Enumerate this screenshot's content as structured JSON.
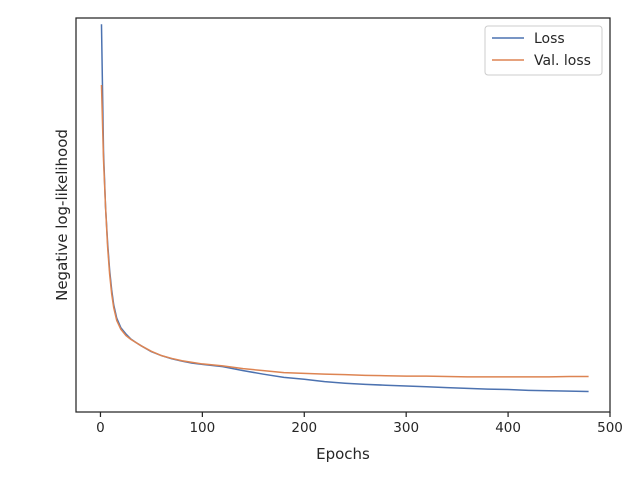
{
  "chart_data": {
    "type": "line",
    "title": "",
    "xlabel": "Epochs",
    "ylabel": "Negative log-likelihood",
    "xlim": [
      -24,
      500
    ],
    "ylim": [
      0.0,
      1.0
    ],
    "y_tick_labels_shown": false,
    "grid": false,
    "legend_position": "top-right",
    "x_ticks": [
      0,
      100,
      200,
      300,
      400,
      500
    ],
    "x_tick_labels": [
      "0",
      "100",
      "200",
      "300",
      "400",
      "500"
    ],
    "series": [
      {
        "name": "Loss",
        "color": "#4c72b0",
        "x": [
          1,
          3,
          5,
          7,
          9,
          11,
          13,
          16,
          20,
          25,
          30,
          35,
          40,
          50,
          60,
          70,
          80,
          90,
          100,
          120,
          140,
          160,
          180,
          200,
          220,
          240,
          260,
          280,
          300,
          320,
          340,
          360,
          380,
          400,
          420,
          440,
          460,
          479
        ],
        "y": [
          0.984,
          0.66,
          0.52,
          0.43,
          0.36,
          0.31,
          0.272,
          0.238,
          0.214,
          0.198,
          0.185,
          0.176,
          0.168,
          0.153,
          0.143,
          0.135,
          0.129,
          0.124,
          0.121,
          0.115,
          0.105,
          0.096,
          0.088,
          0.083,
          0.077,
          0.073,
          0.07,
          0.068,
          0.066,
          0.064,
          0.062,
          0.06,
          0.058,
          0.057,
          0.055,
          0.054,
          0.053,
          0.052
        ]
      },
      {
        "name": "Val. loss",
        "color": "#dd8452",
        "x": [
          1,
          3,
          5,
          7,
          9,
          11,
          13,
          16,
          20,
          25,
          30,
          35,
          40,
          50,
          60,
          70,
          80,
          90,
          100,
          120,
          140,
          160,
          180,
          200,
          220,
          240,
          260,
          280,
          300,
          320,
          340,
          360,
          380,
          400,
          420,
          440,
          460,
          479
        ],
        "y": [
          0.83,
          0.64,
          0.52,
          0.42,
          0.35,
          0.3,
          0.265,
          0.232,
          0.21,
          0.194,
          0.184,
          0.176,
          0.168,
          0.154,
          0.143,
          0.136,
          0.13,
          0.126,
          0.122,
          0.117,
          0.11,
          0.105,
          0.1,
          0.098,
          0.096,
          0.095,
          0.093,
          0.092,
          0.091,
          0.091,
          0.09,
          0.089,
          0.089,
          0.089,
          0.089,
          0.089,
          0.09,
          0.09
        ]
      }
    ]
  }
}
